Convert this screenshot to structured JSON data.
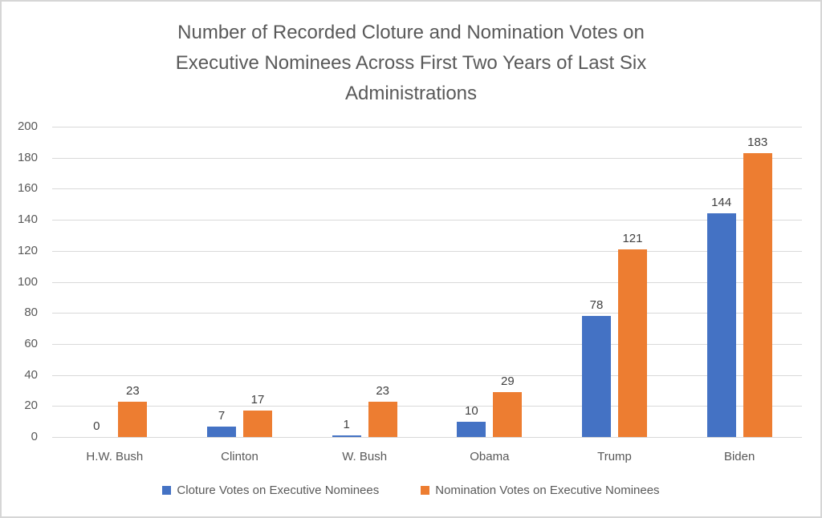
{
  "chart_data": {
    "type": "bar",
    "title": "Number of Recorded Cloture and Nomination Votes on Executive Nominees Across First Two Years of Last Six Administrations",
    "categories": [
      "H.W. Bush",
      "Clinton",
      "W. Bush",
      "Obama",
      "Trump",
      "Biden"
    ],
    "series": [
      {
        "name": "Cloture Votes on Executive Nominees",
        "color": "#4472C4",
        "values": [
          0,
          7,
          1,
          10,
          78,
          144
        ]
      },
      {
        "name": "Nomination Votes on Executive Nominees",
        "color": "#ED7D31",
        "values": [
          23,
          17,
          23,
          29,
          121,
          183
        ]
      }
    ],
    "ylim": [
      0,
      200
    ],
    "ytick_step": 20,
    "grid": true,
    "legend_position": "bottom",
    "xlabel": "",
    "ylabel": ""
  },
  "colors": {
    "title_text": "#595959",
    "axis_text": "#595959",
    "data_label_text": "#404040",
    "gridline": "#D9D9D9",
    "frame_border": "#D6D6D6",
    "background": "#FFFFFF"
  }
}
